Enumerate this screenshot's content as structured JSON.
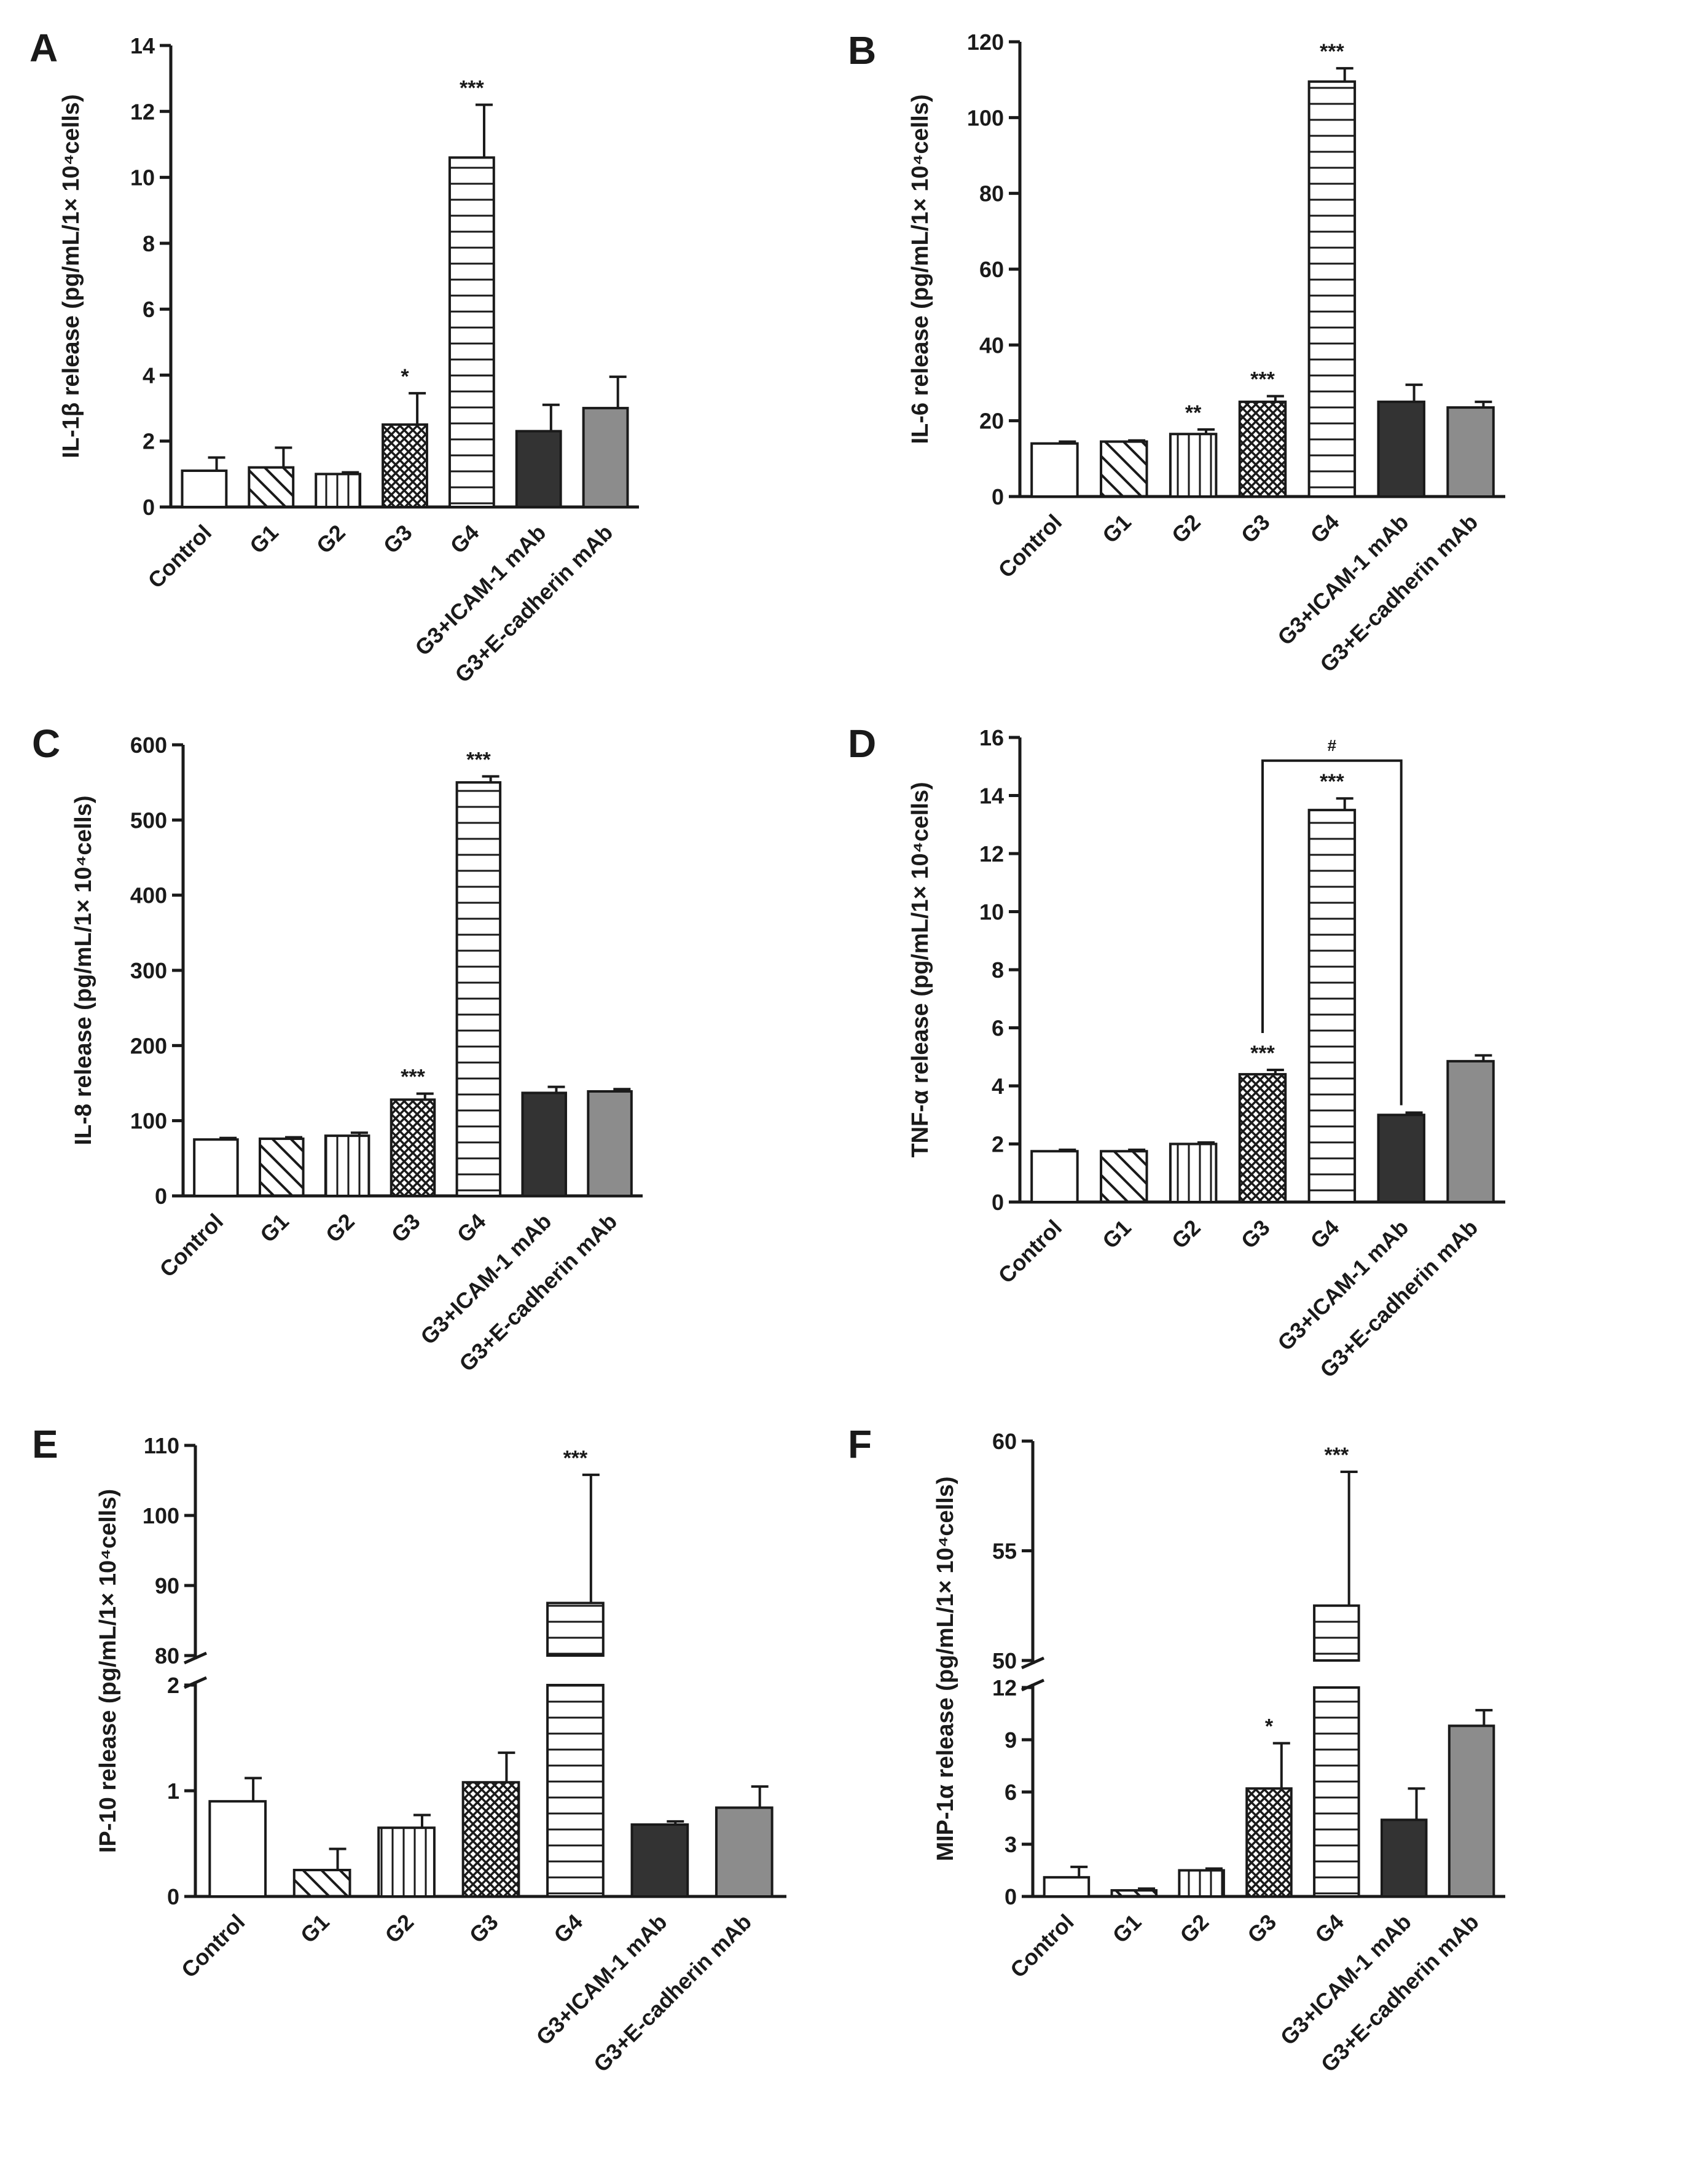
{
  "figure": {
    "categories": [
      "Control",
      "G1",
      "G2",
      "G3",
      "G4",
      "G3+ICAM-1 mAb",
      "G3+E-cadherin mAb"
    ],
    "patterns": [
      "none",
      "diag",
      "vert",
      "cross",
      "horiz",
      "solid",
      "gray"
    ],
    "colors": {
      "axis": "#1a1a1a",
      "solid_bar": "#333333",
      "gray_bar": "#8c8c8c",
      "fill": "#ffffff"
    }
  },
  "chart_data": [
    {
      "panel": "A",
      "type": "bar",
      "ylabel": "IL-1β release (pg/mL/1× 10⁴cells)",
      "ylim": [
        0,
        14
      ],
      "yticks": [
        0,
        2,
        4,
        6,
        8,
        10,
        12,
        14
      ],
      "values": [
        1.1,
        1.2,
        1.0,
        2.5,
        10.6,
        2.3,
        3.0
      ],
      "errors": [
        0.4,
        0.6,
        0.05,
        0.95,
        1.6,
        0.8,
        0.95
      ],
      "significance": [
        "",
        "",
        "",
        "*",
        "***",
        "",
        ""
      ]
    },
    {
      "panel": "B",
      "type": "bar",
      "ylabel": "IL-6 release (pg/mL/1× 10⁴cells)",
      "ylim": [
        0,
        120
      ],
      "yticks": [
        0,
        20,
        40,
        60,
        80,
        100,
        120
      ],
      "values": [
        14,
        14.5,
        16.5,
        25,
        109.5,
        25,
        23.5
      ],
      "errors": [
        0.5,
        0.3,
        1.2,
        1.5,
        3.5,
        4.5,
        1.5
      ],
      "significance": [
        "",
        "",
        "**",
        "***",
        "***",
        "",
        ""
      ]
    },
    {
      "panel": "C",
      "type": "bar",
      "ylabel": "IL-8 release (pg/mL/1× 10⁴cells)",
      "ylim": [
        0,
        600
      ],
      "yticks": [
        0,
        100,
        200,
        300,
        400,
        500,
        600
      ],
      "values": [
        75,
        76,
        80,
        128,
        550,
        137,
        139
      ],
      "errors": [
        2,
        2,
        4,
        8,
        8,
        8,
        3
      ],
      "significance": [
        "",
        "",
        "",
        "***",
        "***",
        "",
        ""
      ]
    },
    {
      "panel": "D",
      "type": "bar",
      "ylabel": "TNF-α release (pg/mL/1× 10⁴cells)",
      "ylim": [
        0,
        16
      ],
      "yticks": [
        0,
        2,
        4,
        6,
        8,
        10,
        12,
        14,
        16
      ],
      "values": [
        1.75,
        1.75,
        2.0,
        4.4,
        13.5,
        3.0,
        4.85
      ],
      "errors": [
        0.05,
        0.05,
        0.05,
        0.15,
        0.4,
        0.08,
        0.2
      ],
      "significance": [
        "",
        "",
        "",
        "***",
        "***",
        "",
        ""
      ],
      "bracket": {
        "from": 3,
        "to": 5,
        "level": 15.2,
        "label": "#"
      }
    },
    {
      "panel": "E",
      "type": "bar",
      "ylabel": "IP-10 release (pg/mL/1× 10⁴cells)",
      "broken_axis": true,
      "lower": {
        "ylim": [
          0,
          2
        ],
        "yticks": [
          0,
          1,
          2
        ]
      },
      "upper": {
        "ylim": [
          80,
          110
        ],
        "yticks": [
          80,
          90,
          100,
          110
        ]
      },
      "values": [
        0.9,
        0.25,
        0.65,
        1.08,
        87.5,
        0.68,
        0.84
      ],
      "errors": [
        0.22,
        0.2,
        0.12,
        0.28,
        18.3,
        0.03,
        0.2
      ],
      "significance": [
        "",
        "",
        "",
        "",
        "***",
        "",
        ""
      ]
    },
    {
      "panel": "F",
      "type": "bar",
      "ylabel": "MIP-1α release (pg/mL/1× 10⁴cells)",
      "broken_axis": true,
      "lower": {
        "ylim": [
          0,
          12
        ],
        "yticks": [
          0,
          3,
          6,
          9,
          12
        ]
      },
      "upper": {
        "ylim": [
          50,
          60
        ],
        "yticks": [
          50,
          55,
          60
        ]
      },
      "values": [
        1.1,
        0.35,
        1.5,
        6.2,
        52.5,
        4.4,
        9.8
      ],
      "errors": [
        0.6,
        0.1,
        0.1,
        2.6,
        6.1,
        1.8,
        0.9
      ],
      "significance": [
        "",
        "",
        "",
        "*",
        "***",
        "",
        ""
      ]
    }
  ]
}
